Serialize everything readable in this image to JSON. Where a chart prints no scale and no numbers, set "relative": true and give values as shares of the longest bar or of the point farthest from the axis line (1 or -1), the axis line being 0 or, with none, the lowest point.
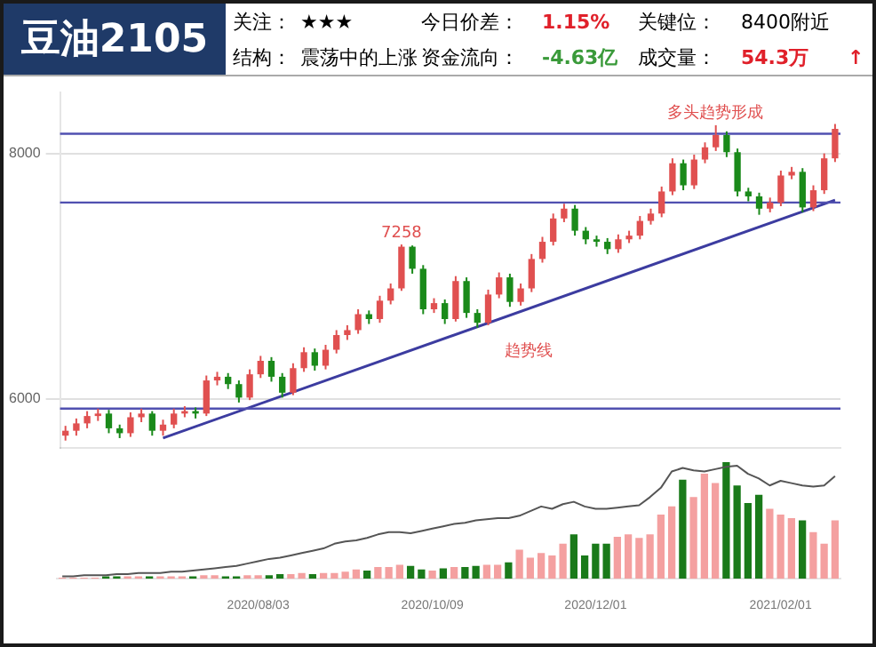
{
  "chart_data": [
    {
      "type": "other",
      "title": "豆油2105",
      "annotations": [
        "关注：",
        "★★★",
        "今日价差：",
        "1.15%",
        "关键位：",
        "8400附近",
        "结构：",
        "震荡中的上涨",
        "资金流向：",
        "-4.63亿",
        "成交量：",
        "54.3万",
        "↑"
      ]
    },
    {
      "type": "candlestick",
      "categories": [
        null,
        null,
        null,
        null,
        null,
        null,
        null,
        null,
        null,
        null,
        null,
        null,
        null,
        null,
        null,
        null,
        null,
        null,
        "2020/08/03",
        null,
        null,
        null,
        null,
        null,
        null,
        null,
        null,
        null,
        null,
        null,
        null,
        null,
        null,
        null,
        "2020/10/09",
        null,
        null,
        null,
        null,
        null,
        null,
        null,
        null,
        null,
        null,
        null,
        null,
        null,
        null,
        "2020/12/01",
        null,
        null,
        null,
        null,
        null,
        null,
        null,
        null,
        null,
        null,
        null,
        null,
        null,
        null,
        null,
        null,
        "2021/02/01",
        null,
        null,
        null,
        null,
        null
      ],
      "ohlc": [
        [
          5700,
          5780,
          5660,
          5740
        ],
        [
          5740,
          5840,
          5700,
          5800
        ],
        [
          5800,
          5900,
          5760,
          5860
        ],
        [
          5860,
          5920,
          5820,
          5880
        ],
        [
          5880,
          5910,
          5720,
          5760
        ],
        [
          5760,
          5790,
          5680,
          5720
        ],
        [
          5720,
          5890,
          5690,
          5850
        ],
        [
          5850,
          5920,
          5810,
          5880
        ],
        [
          5880,
          5900,
          5700,
          5740
        ],
        [
          5740,
          5830,
          5700,
          5790
        ],
        [
          5790,
          5920,
          5760,
          5880
        ],
        [
          5880,
          5940,
          5850,
          5900
        ],
        [
          5900,
          5930,
          5840,
          5880
        ],
        [
          5880,
          6190,
          5860,
          6150
        ],
        [
          6150,
          6220,
          6110,
          6180
        ],
        [
          6180,
          6210,
          6080,
          6120
        ],
        [
          6120,
          6150,
          5970,
          6010
        ],
        [
          6010,
          6240,
          5990,
          6200
        ],
        [
          6200,
          6350,
          6170,
          6310
        ],
        [
          6310,
          6340,
          6140,
          6180
        ],
        [
          6180,
          6210,
          6010,
          6050
        ],
        [
          6050,
          6290,
          6030,
          6250
        ],
        [
          6250,
          6420,
          6220,
          6380
        ],
        [
          6380,
          6410,
          6230,
          6270
        ],
        [
          6270,
          6440,
          6240,
          6400
        ],
        [
          6400,
          6560,
          6370,
          6520
        ],
        [
          6520,
          6600,
          6480,
          6560
        ],
        [
          6560,
          6730,
          6530,
          6690
        ],
        [
          6690,
          6720,
          6610,
          6650
        ],
        [
          6650,
          6840,
          6620,
          6800
        ],
        [
          6800,
          6940,
          6770,
          6900
        ],
        [
          6900,
          7258,
          6880,
          7240
        ],
        [
          7240,
          7250,
          7020,
          7060
        ],
        [
          7060,
          7090,
          6690,
          6730
        ],
        [
          6730,
          6820,
          6700,
          6780
        ],
        [
          6780,
          6810,
          6610,
          6650
        ],
        [
          6650,
          7000,
          6630,
          6960
        ],
        [
          6960,
          6990,
          6660,
          6700
        ],
        [
          6700,
          6730,
          6580,
          6620
        ],
        [
          6620,
          6890,
          6600,
          6850
        ],
        [
          6850,
          7030,
          6820,
          6990
        ],
        [
          6990,
          7020,
          6750,
          6790
        ],
        [
          6790,
          6940,
          6760,
          6900
        ],
        [
          6900,
          7180,
          6870,
          7140
        ],
        [
          7140,
          7320,
          7110,
          7280
        ],
        [
          7280,
          7510,
          7250,
          7470
        ],
        [
          7470,
          7590,
          7440,
          7550
        ],
        [
          7550,
          7580,
          7330,
          7370
        ],
        [
          7370,
          7400,
          7260,
          7300
        ],
        [
          7300,
          7330,
          7240,
          7280
        ],
        [
          7280,
          7310,
          7180,
          7220
        ],
        [
          7220,
          7340,
          7190,
          7300
        ],
        [
          7300,
          7370,
          7270,
          7330
        ],
        [
          7330,
          7490,
          7300,
          7450
        ],
        [
          7450,
          7550,
          7420,
          7510
        ],
        [
          7510,
          7730,
          7480,
          7690
        ],
        [
          7690,
          7960,
          7660,
          7920
        ],
        [
          7920,
          7950,
          7700,
          7740
        ],
        [
          7740,
          7990,
          7710,
          7950
        ],
        [
          7950,
          8090,
          7920,
          8050
        ],
        [
          8050,
          8230,
          8020,
          8150
        ],
        [
          8150,
          8180,
          7970,
          8010
        ],
        [
          8010,
          8040,
          7650,
          7690
        ],
        [
          7690,
          7720,
          7610,
          7650
        ],
        [
          7650,
          7680,
          7500,
          7550
        ],
        [
          7550,
          7640,
          7520,
          7600
        ],
        [
          7600,
          7860,
          7570,
          7820
        ],
        [
          7820,
          7890,
          7790,
          7850
        ],
        [
          7850,
          7880,
          7520,
          7560
        ],
        [
          7560,
          7740,
          7530,
          7700
        ],
        [
          7700,
          8000,
          7670,
          7960
        ],
        [
          7960,
          8240,
          7930,
          8200
        ]
      ],
      "series": [
        {
          "type": "line",
          "color": "#3c3ca0",
          "values": [
            null,
            null,
            null,
            null,
            null,
            null,
            null,
            null,
            null,
            5680,
            null,
            null,
            null,
            null,
            null,
            null,
            null,
            null,
            null,
            null,
            null,
            null,
            null,
            null,
            null,
            null,
            null,
            null,
            null,
            null,
            null,
            null,
            null,
            null,
            null,
            null,
            null,
            null,
            null,
            null,
            null,
            null,
            null,
            null,
            null,
            null,
            null,
            null,
            null,
            null,
            null,
            null,
            null,
            null,
            null,
            null,
            null,
            null,
            null,
            null,
            null,
            null,
            null,
            null,
            null,
            null,
            null,
            null,
            null,
            null,
            null,
            7620
          ]
        }
      ],
      "ylim": [
        5600,
        8500
      ],
      "yticks": [
        6000,
        8000
      ],
      "grid": "y",
      "tick_labels": "y",
      "ref_lines": [
        {
          "axis": "y",
          "value": 5920,
          "color": "#5050b0"
        },
        {
          "axis": "y",
          "value": 7600,
          "color": "#5050b0"
        },
        {
          "axis": "y",
          "value": 8160,
          "color": "#5050b0"
        }
      ],
      "annotations": [
        {
          "text": "7258",
          "y": 7258
        },
        "趋势线",
        "多头趋势形成"
      ]
    },
    {
      "type": "bar",
      "relative": true,
      "tick_labels": "x",
      "categories": [
        null,
        null,
        null,
        null,
        null,
        null,
        null,
        null,
        null,
        null,
        null,
        null,
        null,
        null,
        null,
        null,
        null,
        null,
        "2020/08/03",
        null,
        null,
        null,
        null,
        null,
        null,
        null,
        null,
        null,
        null,
        null,
        null,
        null,
        null,
        null,
        "2020/10/09",
        null,
        null,
        null,
        null,
        null,
        null,
        null,
        null,
        null,
        null,
        null,
        null,
        null,
        null,
        "2020/12/01",
        null,
        null,
        null,
        null,
        null,
        null,
        null,
        null,
        null,
        null,
        null,
        null,
        null,
        null,
        null,
        null,
        "2021/02/01",
        null,
        null,
        null,
        null,
        null
      ],
      "series": [
        {
          "type": "bar",
          "colors": [
            "#f4a0a0",
            "#f4a0a0",
            "#f4a0a0",
            "#f4a0a0",
            "#1a7a1a",
            "#1a7a1a",
            "#f4a0a0",
            "#f4a0a0",
            "#1a7a1a",
            "#f4a0a0",
            "#f4a0a0",
            "#f4a0a0",
            "#1a7a1a",
            "#f4a0a0",
            "#f4a0a0",
            "#1a7a1a",
            "#1a7a1a",
            "#f4a0a0",
            "#f4a0a0",
            "#1a7a1a",
            "#1a7a1a",
            "#f4a0a0",
            "#f4a0a0",
            "#1a7a1a",
            "#f4a0a0",
            "#f4a0a0",
            "#f4a0a0",
            "#f4a0a0",
            "#1a7a1a",
            "#f4a0a0",
            "#f4a0a0",
            "#f4a0a0",
            "#1a7a1a",
            "#1a7a1a",
            "#f4a0a0",
            "#1a7a1a",
            "#f4a0a0",
            "#1a7a1a",
            "#1a7a1a",
            "#f4a0a0",
            "#f4a0a0",
            "#1a7a1a",
            "#f4a0a0",
            "#f4a0a0",
            "#f4a0a0",
            "#f4a0a0",
            "#f4a0a0",
            "#1a7a1a",
            "#1a7a1a",
            "#1a7a1a",
            "#1a7a1a",
            "#f4a0a0",
            "#f4a0a0",
            "#f4a0a0",
            "#f4a0a0",
            "#f4a0a0",
            "#f4a0a0",
            "#1a7a1a",
            "#f4a0a0",
            "#f4a0a0",
            "#f4a0a0",
            "#1a7a1a",
            "#1a7a1a",
            "#1a7a1a",
            "#1a7a1a",
            "#f4a0a0",
            "#f4a0a0",
            "#f4a0a0",
            "#1a7a1a",
            "#f4a0a0",
            "#f4a0a0",
            "#f4a0a0"
          ],
          "values": [
            0.01,
            0.01,
            0.01,
            0.01,
            0.02,
            0.02,
            0.02,
            0.02,
            0.02,
            0.02,
            0.02,
            0.02,
            0.02,
            0.03,
            0.03,
            0.02,
            0.02,
            0.03,
            0.03,
            0.03,
            0.04,
            0.04,
            0.05,
            0.04,
            0.05,
            0.05,
            0.06,
            0.08,
            0.07,
            0.1,
            0.1,
            0.12,
            0.11,
            0.08,
            0.07,
            0.09,
            0.1,
            0.1,
            0.11,
            0.12,
            0.12,
            0.14,
            0.25,
            0.18,
            0.22,
            0.2,
            0.3,
            0.38,
            0.2,
            0.3,
            0.3,
            0.36,
            0.38,
            0.35,
            0.38,
            0.55,
            0.62,
            0.85,
            0.7,
            0.9,
            0.82,
            1,
            0.8,
            0.65,
            0.72,
            0.6,
            0.55,
            0.52,
            0.5,
            0.4,
            0.3,
            0.5
          ]
        },
        {
          "type": "line",
          "color": "#555555",
          "values": [
            0.02,
            0.02,
            0.03,
            0.03,
            0.03,
            0.04,
            0.04,
            0.05,
            0.05,
            0.05,
            0.06,
            0.06,
            0.07,
            0.08,
            0.09,
            0.1,
            0.11,
            0.13,
            0.15,
            0.17,
            0.18,
            0.2,
            0.22,
            0.24,
            0.26,
            0.3,
            0.32,
            0.33,
            0.35,
            0.38,
            0.4,
            0.4,
            0.39,
            0.41,
            0.43,
            0.45,
            0.47,
            0.48,
            0.5,
            0.51,
            0.52,
            0.52,
            0.54,
            0.58,
            0.62,
            0.6,
            0.64,
            0.66,
            0.62,
            0.6,
            0.6,
            0.61,
            0.62,
            0.63,
            0.7,
            0.78,
            0.92,
            0.95,
            0.93,
            0.92,
            0.94,
            0.96,
            0.97,
            0.9,
            0.86,
            0.8,
            0.84,
            0.82,
            0.8,
            0.79,
            0.8,
            0.88
          ]
        }
      ]
    }
  ]
}
